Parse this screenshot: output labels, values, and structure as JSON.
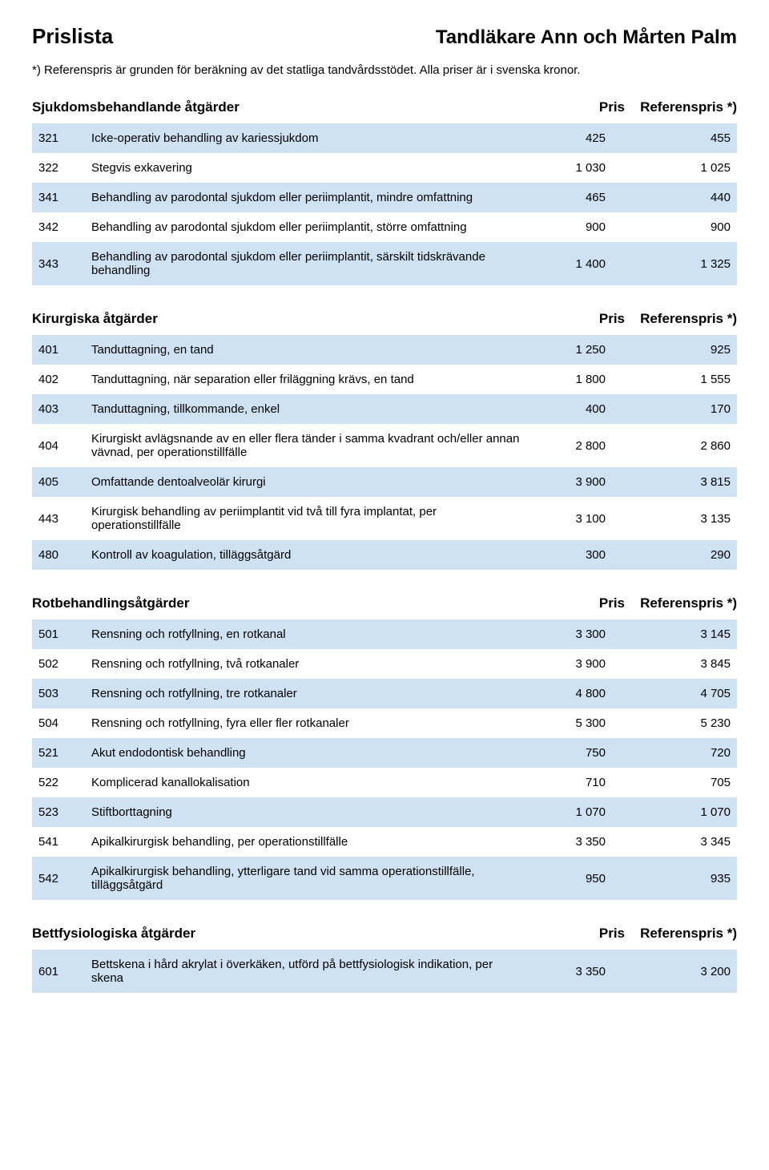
{
  "header": {
    "title": "Prislista",
    "subtitle": "Tandläkare Ann och Mårten Palm"
  },
  "reference_note": "*) Referenspris är grunden för beräkning av det statliga tandvårdsstödet. Alla priser är i svenska kronor.",
  "columns": {
    "price": "Pris",
    "ref": "Referenspris *)"
  },
  "colors": {
    "row_odd": "#cfe2f3",
    "row_even": "#ffffff"
  },
  "sections": [
    {
      "title": "Sjukdomsbehandlande åtgärder",
      "rows": [
        {
          "code": "321",
          "desc": "Icke-operativ behandling av kariessjukdom",
          "price": "425",
          "ref": "455"
        },
        {
          "code": "322",
          "desc": "Stegvis exkavering",
          "price": "1 030",
          "ref": "1 025"
        },
        {
          "code": "341",
          "desc": "Behandling av parodontal sjukdom eller periimplantit, mindre omfattning",
          "price": "465",
          "ref": "440"
        },
        {
          "code": "342",
          "desc": "Behandling av parodontal sjukdom eller periimplantit, större omfattning",
          "price": "900",
          "ref": "900"
        },
        {
          "code": "343",
          "desc": "Behandling av parodontal sjukdom eller periimplantit, särskilt tidskrävande behandling",
          "price": "1 400",
          "ref": "1 325"
        }
      ]
    },
    {
      "title": "Kirurgiska åtgärder",
      "rows": [
        {
          "code": "401",
          "desc": "Tanduttagning, en tand",
          "price": "1 250",
          "ref": "925"
        },
        {
          "code": "402",
          "desc": "Tanduttagning, när separation eller friläggning krävs, en tand",
          "price": "1 800",
          "ref": "1 555"
        },
        {
          "code": "403",
          "desc": "Tanduttagning, tillkommande, enkel",
          "price": "400",
          "ref": "170"
        },
        {
          "code": "404",
          "desc": "Kirurgiskt avlägsnande av en eller flera tänder i samma kvadrant och/eller annan vävnad, per operationstillfälle",
          "price": "2 800",
          "ref": "2 860"
        },
        {
          "code": "405",
          "desc": "Omfattande dentoalveolär kirurgi",
          "price": "3 900",
          "ref": "3 815"
        },
        {
          "code": "443",
          "desc": "Kirurgisk behandling av periimplantit vid två till fyra implantat, per operationstillfälle",
          "price": "3 100",
          "ref": "3 135"
        },
        {
          "code": "480",
          "desc": "Kontroll av koagulation, tilläggsåtgärd",
          "price": "300",
          "ref": "290"
        }
      ]
    },
    {
      "title": "Rotbehandlingsåtgärder",
      "rows": [
        {
          "code": "501",
          "desc": "Rensning och rotfyllning, en rotkanal",
          "price": "3 300",
          "ref": "3 145"
        },
        {
          "code": "502",
          "desc": "Rensning och rotfyllning, två rotkanaler",
          "price": "3 900",
          "ref": "3 845"
        },
        {
          "code": "503",
          "desc": "Rensning och rotfyllning, tre rotkanaler",
          "price": "4 800",
          "ref": "4 705"
        },
        {
          "code": "504",
          "desc": "Rensning och rotfyllning, fyra eller fler rotkanaler",
          "price": "5 300",
          "ref": "5 230"
        },
        {
          "code": "521",
          "desc": "Akut endodontisk behandling",
          "price": "750",
          "ref": "720"
        },
        {
          "code": "522",
          "desc": "Komplicerad kanallokalisation",
          "price": "710",
          "ref": "705"
        },
        {
          "code": "523",
          "desc": "Stiftborttagning",
          "price": "1 070",
          "ref": "1 070"
        },
        {
          "code": "541",
          "desc": "Apikalkirurgisk behandling, per operationstillfälle",
          "price": "3 350",
          "ref": "3 345"
        },
        {
          "code": "542",
          "desc": "Apikalkirurgisk behandling, ytterligare tand vid samma operationstillfälle, tilläggsåtgärd",
          "price": "950",
          "ref": "935"
        }
      ]
    },
    {
      "title": "Bettfysiologiska åtgärder",
      "rows": [
        {
          "code": "601",
          "desc": "Bettskena i hård akrylat i överkäken, utförd på bettfysiologisk indikation, per skena",
          "price": "3 350",
          "ref": "3 200"
        }
      ]
    }
  ]
}
